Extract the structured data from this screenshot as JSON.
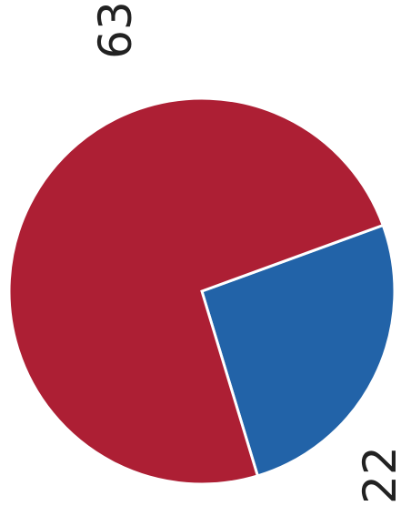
{
  "chart_data": {
    "type": "pie",
    "slices": [
      {
        "value": 63,
        "label": "63",
        "color": "#ad1f34"
      },
      {
        "value": 22,
        "label": "22",
        "color": "#2263a8"
      }
    ],
    "title": "",
    "legend": "none",
    "label_orientation": "rotated-90"
  }
}
